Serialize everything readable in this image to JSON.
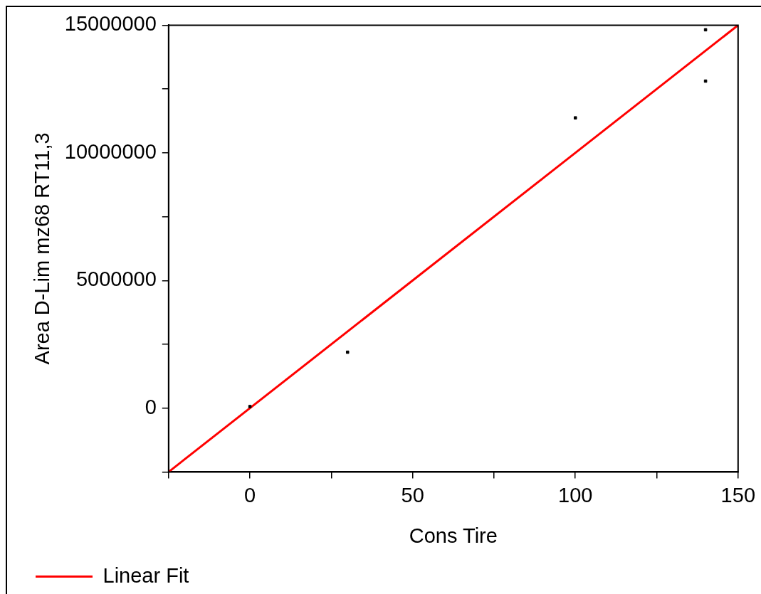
{
  "chart_data": {
    "type": "scatter",
    "xlabel": "Cons Tire",
    "ylabel": "Area D-Lim mz68 RT11,3",
    "xlim": [
      -25,
      150
    ],
    "xticks": [
      {
        "value": -25,
        "label": null
      },
      0,
      {
        "value": 25,
        "label": null
      },
      50,
      {
        "value": 75,
        "label": null
      },
      100,
      {
        "value": 125,
        "label": null
      },
      150
    ],
    "ylim": [
      -2500000,
      15000000
    ],
    "yticks": [
      {
        "value": -2500000,
        "label": null
      },
      0,
      {
        "value": 2500000,
        "label": null
      },
      5000000,
      {
        "value": 7500000,
        "label": null
      },
      10000000,
      {
        "value": 12500000,
        "label": null
      },
      15000000
    ],
    "grid": false,
    "legend": "bottom left",
    "marker": "square",
    "series": [
      {
        "color": "#000000",
        "x": [
          0,
          30,
          100,
          140,
          140
        ],
        "values": [
          60000,
          2190000,
          11370000,
          14820000,
          12810000
        ]
      },
      {
        "type": "line",
        "name": "Linear Fit",
        "color": "#ff0000",
        "x": [
          -25,
          150
        ],
        "values": [
          -2500000,
          15000000
        ],
        "marker": "none",
        "line_style": "solid"
      }
    ]
  }
}
